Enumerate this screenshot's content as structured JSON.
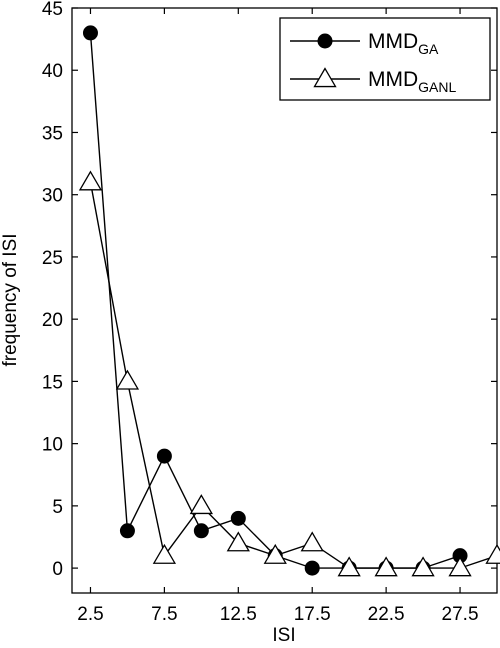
{
  "chart_data": {
    "type": "line",
    "xlabel": "ISI",
    "ylabel": "frequency of ISI",
    "xlim": [
      1.25,
      30.0
    ],
    "ylim": [
      -2,
      45
    ],
    "x_ticks": [
      "2.5",
      "7.5",
      "12.5",
      "17.5",
      "22.5",
      "27.5"
    ],
    "y_ticks": [
      "0",
      "5",
      "10",
      "15",
      "20",
      "25",
      "30",
      "35",
      "40",
      "45"
    ],
    "legend_position": "top-right",
    "series": [
      {
        "name": "MMD",
        "name_subscript": "GA",
        "marker": "filled-circle",
        "color": "#000000",
        "x": [
          2.5,
          5.0,
          7.5,
          10.0,
          12.5,
          15.0,
          17.5,
          20.0,
          22.5,
          25.0,
          27.5
        ],
        "y": [
          43,
          3,
          9,
          3,
          4,
          1,
          0,
          0,
          0,
          0,
          1
        ]
      },
      {
        "name": "MMD",
        "name_subscript": "GANL",
        "marker": "open-triangle",
        "color": "#000000",
        "x": [
          2.5,
          5.0,
          7.5,
          10.0,
          12.5,
          15.0,
          17.5,
          20.0,
          22.5,
          25.0,
          27.5,
          30.0
        ],
        "y": [
          31,
          15,
          1,
          5,
          2,
          1,
          2,
          0,
          0,
          0,
          0,
          1
        ]
      }
    ]
  }
}
